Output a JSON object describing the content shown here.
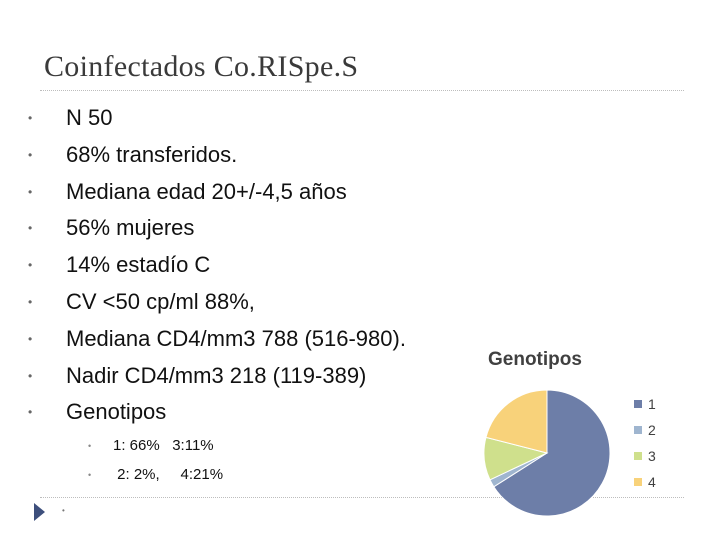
{
  "slide": {
    "title": "Coinfectados Co.RISpe.S",
    "bullets": [
      "N 50",
      "68% transferidos.",
      "Mediana edad 20+/-4,5 años",
      "56% mujeres",
      "14% estadío C",
      "CV <50 cp/ml  88%,",
      "Mediana CD4/mm3 788 (516-980).",
      "Nadir CD4/mm3 218 (119-389)",
      "Genotipos"
    ],
    "sub_bullets": [
      "1: 66%   3:11%",
      " 2: 2%,     4:21%"
    ],
    "bullet_glyph": "•",
    "empty_bullet_glyph": "•"
  },
  "chart_data": {
    "type": "pie",
    "title": "Genotipos",
    "categories": [
      "1",
      "2",
      "3",
      "4"
    ],
    "values": [
      66,
      2,
      11,
      21
    ],
    "colors": [
      "#6d7ea8",
      "#9fb5cf",
      "#cfe08c",
      "#f8d27a"
    ],
    "legend": "right"
  }
}
